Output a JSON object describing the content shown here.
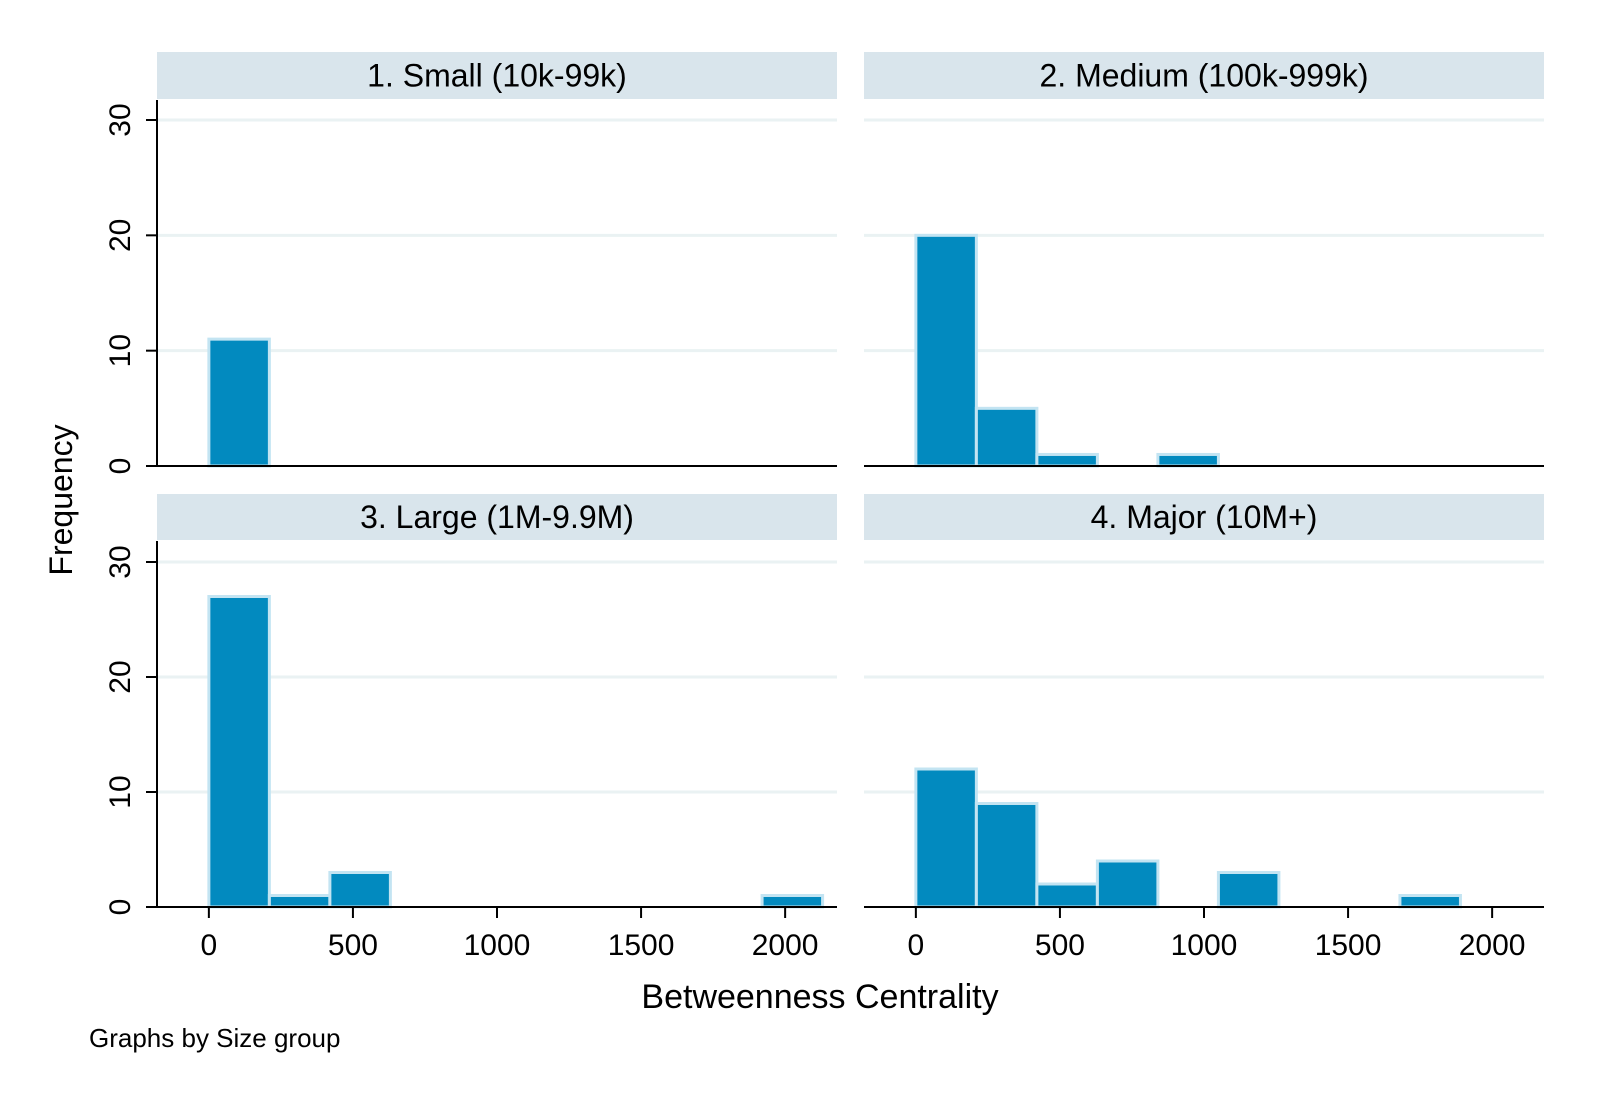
{
  "chart_data": {
    "type": "bar",
    "xlabel": "Betweenness Centrality",
    "ylabel": "Frequency",
    "note": "Graphs by Size group",
    "xlim": [
      -180,
      2180
    ],
    "ylim": [
      0,
      32
    ],
    "xticks": [
      0,
      500,
      1000,
      1500,
      2000
    ],
    "yticks": [
      0,
      10,
      20,
      30
    ],
    "grid": true,
    "bar_color": "#028abf",
    "bar_outline_color": "#c3e4f2",
    "header_color": "#d9e5ec",
    "grid_color": "#eaf2f3",
    "panels": [
      {
        "title": "1. Small (10k-99k)",
        "bins": [
          {
            "start": 0,
            "end": 210,
            "count": 11
          }
        ]
      },
      {
        "title": "2. Medium (100k-999k)",
        "bins": [
          {
            "start": 0,
            "end": 210,
            "count": 20
          },
          {
            "start": 210,
            "end": 420,
            "count": 5
          },
          {
            "start": 420,
            "end": 630,
            "count": 1
          },
          {
            "start": 840,
            "end": 1050,
            "count": 1
          }
        ]
      },
      {
        "title": "3. Large (1M-9.9M)",
        "bins": [
          {
            "start": 0,
            "end": 210,
            "count": 27
          },
          {
            "start": 210,
            "end": 420,
            "count": 1
          },
          {
            "start": 420,
            "end": 630,
            "count": 3
          },
          {
            "start": 1920,
            "end": 2130,
            "count": 1
          }
        ]
      },
      {
        "title": "4. Major (10M+)",
        "bins": [
          {
            "start": 0,
            "end": 210,
            "count": 12
          },
          {
            "start": 210,
            "end": 420,
            "count": 9
          },
          {
            "start": 420,
            "end": 630,
            "count": 2
          },
          {
            "start": 630,
            "end": 840,
            "count": 4
          },
          {
            "start": 1050,
            "end": 1260,
            "count": 3
          },
          {
            "start": 1680,
            "end": 1890,
            "count": 1
          }
        ]
      }
    ]
  }
}
